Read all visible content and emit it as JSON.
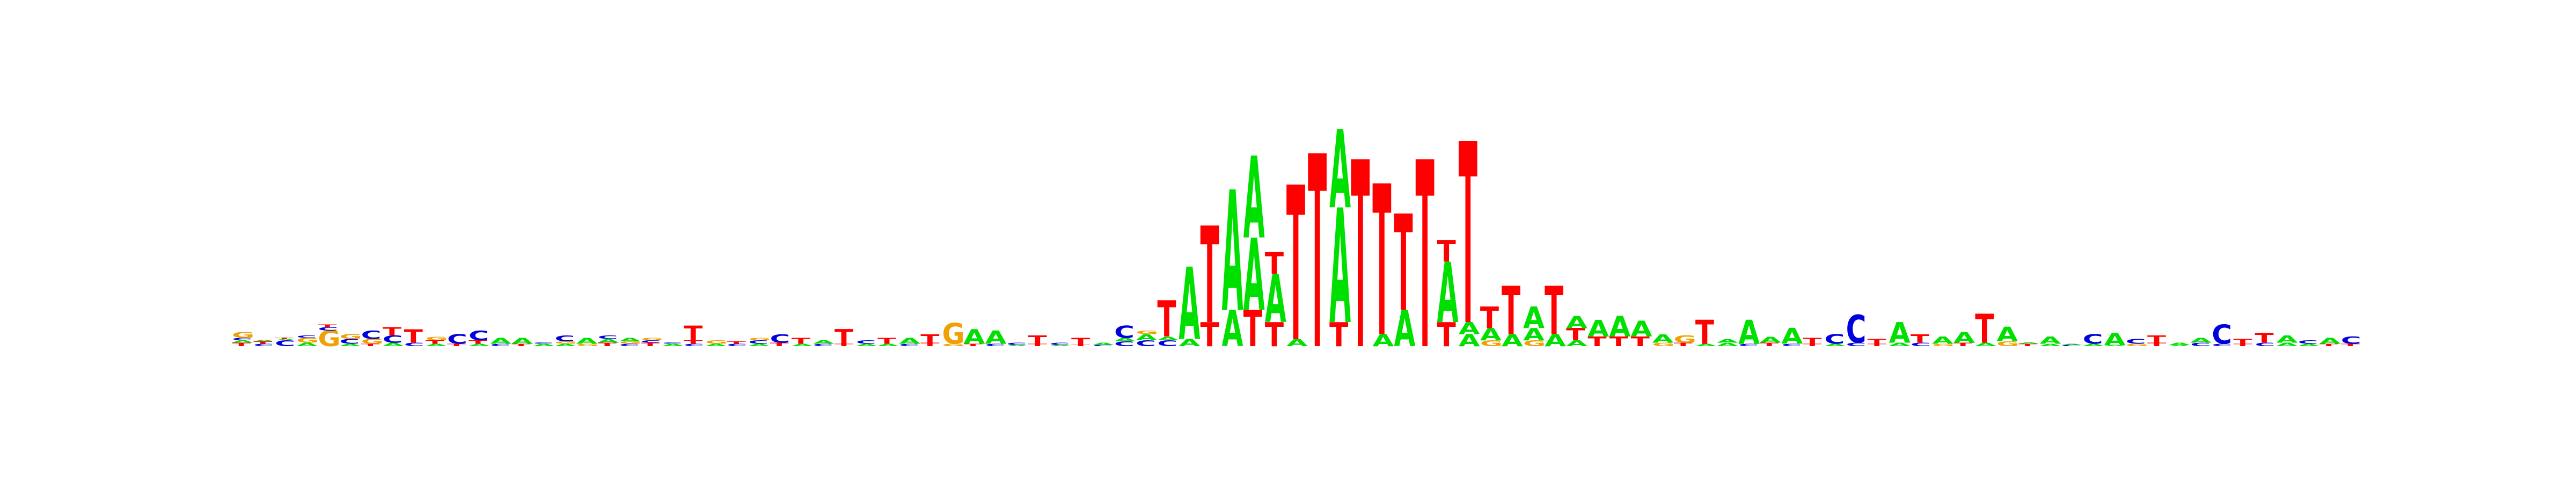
{
  "colors": {
    "A": "#00e000",
    "C": "#0000dd",
    "G": "#f0a000",
    "T": "#ff0000"
  },
  "logo": {
    "type": "sequence-logo",
    "columns": [
      {
        "letters": [
          [
            "T",
            0.03
          ],
          [
            "A",
            0.02
          ],
          [
            "C",
            0.02
          ],
          [
            "G",
            0.05
          ]
        ]
      },
      {
        "letters": [
          [
            "C",
            0.02
          ],
          [
            "T",
            0.02
          ],
          [
            "A",
            0.01
          ]
        ]
      },
      {
        "letters": [
          [
            "C",
            0.05
          ],
          [
            "A",
            0.01
          ],
          [
            "T",
            0.01
          ]
        ]
      },
      {
        "letters": [
          [
            "A",
            0.03
          ],
          [
            "G",
            0.04
          ],
          [
            "C",
            0.02
          ]
        ]
      },
      {
        "letters": [
          [
            "G",
            0.13
          ],
          [
            "C",
            0.03
          ],
          [
            "T",
            0.02
          ]
        ]
      },
      {
        "letters": [
          [
            "A",
            0.02
          ],
          [
            "C",
            0.04
          ],
          [
            "G",
            0.04
          ]
        ]
      },
      {
        "letters": [
          [
            "T",
            0.02
          ],
          [
            "G",
            0.04
          ],
          [
            "C",
            0.07
          ]
        ]
      },
      {
        "letters": [
          [
            "A",
            0.03
          ],
          [
            "C",
            0.06
          ],
          [
            "T",
            0.07
          ]
        ]
      },
      {
        "letters": [
          [
            "C",
            0.03
          ],
          [
            "T",
            0.11
          ]
        ]
      },
      {
        "letters": [
          [
            "A",
            0.02
          ],
          [
            "T",
            0.03
          ],
          [
            "G",
            0.03
          ]
        ]
      },
      {
        "letters": [
          [
            "T",
            0.02
          ],
          [
            "C",
            0.08
          ]
        ]
      },
      {
        "letters": [
          [
            "A",
            0.02
          ],
          [
            "T",
            0.03
          ],
          [
            "C",
            0.08
          ]
        ]
      },
      {
        "letters": [
          [
            "C",
            0.02
          ],
          [
            "A",
            0.05
          ]
        ]
      },
      {
        "letters": [
          [
            "T",
            0.02
          ],
          [
            "A",
            0.05
          ]
        ]
      },
      {
        "letters": [
          [
            "A",
            0.02
          ],
          [
            "C",
            0.01
          ]
        ]
      },
      {
        "letters": [
          [
            "A",
            0.02
          ],
          [
            "G",
            0.02
          ],
          [
            "C",
            0.05
          ]
        ]
      },
      {
        "letters": [
          [
            "G",
            0.02
          ],
          [
            "A",
            0.05
          ]
        ]
      },
      {
        "letters": [
          [
            "T",
            0.03
          ],
          [
            "A",
            0.03
          ],
          [
            "C",
            0.03
          ]
        ]
      },
      {
        "letters": [
          [
            "C",
            0.02
          ],
          [
            "G",
            0.02
          ],
          [
            "A",
            0.03
          ]
        ]
      },
      {
        "letters": [
          [
            "T",
            0.03
          ],
          [
            "C",
            0.02
          ],
          [
            "G",
            0.02
          ]
        ]
      },
      {
        "letters": [
          [
            "A",
            0.02
          ],
          [
            "C",
            0.01
          ]
        ]
      },
      {
        "letters": [
          [
            "C",
            0.02
          ],
          [
            "T",
            0.03
          ],
          [
            "T",
            0.12
          ]
        ]
      },
      {
        "letters": [
          [
            "A",
            0.02
          ],
          [
            "G",
            0.03
          ]
        ]
      },
      {
        "letters": [
          [
            "C",
            0.02
          ],
          [
            "T",
            0.02
          ]
        ]
      },
      {
        "letters": [
          [
            "A",
            0.02
          ],
          [
            "C",
            0.03
          ],
          [
            "G",
            0.02
          ]
        ]
      },
      {
        "letters": [
          [
            "T",
            0.03
          ],
          [
            "C",
            0.07
          ]
        ]
      },
      {
        "letters": [
          [
            "A",
            0.02
          ],
          [
            "T",
            0.05
          ]
        ]
      },
      {
        "letters": [
          [
            "C",
            0.02
          ],
          [
            "A",
            0.03
          ]
        ]
      },
      {
        "letters": [
          [
            "T",
            0.02
          ],
          [
            "T",
            0.12
          ]
        ]
      },
      {
        "letters": [
          [
            "A",
            0.02
          ],
          [
            "C",
            0.03
          ]
        ]
      },
      {
        "letters": [
          [
            "A",
            0.02
          ],
          [
            "T",
            0.05
          ]
        ]
      },
      {
        "letters": [
          [
            "C",
            0.02
          ],
          [
            "A",
            0.05
          ]
        ]
      },
      {
        "letters": [
          [
            "T",
            0.03
          ],
          [
            "T",
            0.07
          ]
        ]
      },
      {
        "letters": [
          [
            "G",
            0.02
          ],
          [
            "G",
            0.17
          ]
        ]
      },
      {
        "letters": [
          [
            "T",
            0.02
          ],
          [
            "A",
            0.12
          ]
        ]
      },
      {
        "letters": [
          [
            "C",
            0.02
          ],
          [
            "A",
            0.11
          ]
        ]
      },
      {
        "letters": [
          [
            "A",
            0.01
          ],
          [
            "C",
            0.02
          ]
        ]
      },
      {
        "letters": [
          [
            "T",
            0.02
          ],
          [
            "T",
            0.07
          ]
        ]
      },
      {
        "letters": [
          [
            "A",
            0.01
          ],
          [
            "C",
            0.02
          ]
        ]
      },
      {
        "letters": [
          [
            "T",
            0.01
          ],
          [
            "T",
            0.06
          ]
        ]
      },
      {
        "letters": [
          [
            "C",
            0.01
          ],
          [
            "A",
            0.02
          ]
        ]
      },
      {
        "letters": [
          [
            "C",
            0.04
          ],
          [
            "A",
            0.03
          ],
          [
            "C",
            0.1
          ]
        ]
      },
      {
        "letters": [
          [
            "C",
            0.05
          ],
          [
            "A",
            0.05
          ],
          [
            "G",
            0.03
          ]
        ]
      },
      {
        "letters": [
          [
            "C",
            0.05
          ],
          [
            "A",
            0.03
          ],
          [
            "T",
            0.3
          ]
        ]
      },
      {
        "letters": [
          [
            "A",
            0.06
          ],
          [
            "A",
            0.6
          ]
        ]
      },
      {
        "letters": [
          [
            "T",
            0.2
          ],
          [
            "T",
            0.8
          ]
        ]
      },
      {
        "letters": [
          [
            "A",
            0.3
          ],
          [
            "A",
            1.0
          ]
        ]
      },
      {
        "letters": [
          [
            "T",
            0.3
          ],
          [
            "A",
            0.6
          ],
          [
            "A",
            0.68
          ]
        ]
      },
      {
        "letters": [
          [
            "T",
            0.2
          ],
          [
            "A",
            0.4
          ],
          [
            "T",
            0.18
          ]
        ]
      },
      {
        "letters": [
          [
            "A",
            0.06
          ],
          [
            "T",
            1.28
          ]
        ]
      },
      {
        "letters": [
          [
            "T",
            1.6
          ]
        ]
      },
      {
        "letters": [
          [
            "T",
            0.2
          ],
          [
            "A",
            0.95
          ],
          [
            "A",
            0.65
          ]
        ]
      },
      {
        "letters": [
          [
            "T",
            1.55
          ]
        ]
      },
      {
        "letters": [
          [
            "A",
            0.1
          ],
          [
            "T",
            1.25
          ]
        ]
      },
      {
        "letters": [
          [
            "A",
            0.3
          ],
          [
            "T",
            0.8
          ]
        ]
      },
      {
        "letters": [
          [
            "T",
            1.55
          ]
        ]
      },
      {
        "letters": [
          [
            "T",
            0.2
          ],
          [
            "A",
            0.5
          ],
          [
            "T",
            0.18
          ]
        ]
      },
      {
        "letters": [
          [
            "A",
            0.1
          ],
          [
            "A",
            0.1
          ],
          [
            "T",
            1.5
          ]
        ]
      },
      {
        "letters": [
          [
            "G",
            0.05
          ],
          [
            "A",
            0.1
          ],
          [
            "T",
            0.18
          ]
        ]
      },
      {
        "letters": [
          [
            "A",
            0.1
          ],
          [
            "T",
            0.4
          ]
        ]
      },
      {
        "letters": [
          [
            "G",
            0.05
          ],
          [
            "A",
            0.1
          ],
          [
            "A",
            0.18
          ]
        ]
      },
      {
        "letters": [
          [
            "A",
            0.1
          ],
          [
            "T",
            0.4
          ]
        ]
      },
      {
        "letters": [
          [
            "A",
            0.05
          ],
          [
            "T",
            0.1
          ],
          [
            "A",
            0.1
          ]
        ]
      },
      {
        "letters": [
          [
            "T",
            0.08
          ],
          [
            "A",
            0.14
          ]
        ]
      },
      {
        "letters": [
          [
            "T",
            0.08
          ],
          [
            "A",
            0.17
          ]
        ]
      },
      {
        "letters": [
          [
            "T",
            0.08
          ],
          [
            "A",
            0.13
          ]
        ]
      },
      {
        "letters": [
          [
            "G",
            0.03
          ],
          [
            "A",
            0.07
          ]
        ]
      },
      {
        "letters": [
          [
            "T",
            0.03
          ],
          [
            "G",
            0.06
          ]
        ]
      },
      {
        "letters": [
          [
            "A",
            0.02
          ],
          [
            "T",
            0.2
          ]
        ]
      },
      {
        "letters": [
          [
            "A",
            0.03
          ],
          [
            "A",
            0.03
          ]
        ]
      },
      {
        "letters": [
          [
            "C",
            0.02
          ],
          [
            "A",
            0.2
          ]
        ]
      },
      {
        "letters": [
          [
            "T",
            0.03
          ],
          [
            "A",
            0.05
          ]
        ]
      },
      {
        "letters": [
          [
            "C",
            0.02
          ],
          [
            "A",
            0.13
          ]
        ]
      },
      {
        "letters": [
          [
            "T",
            0.02
          ],
          [
            "T",
            0.05
          ]
        ]
      },
      {
        "letters": [
          [
            "A",
            0.02
          ],
          [
            "C",
            0.08
          ]
        ]
      },
      {
        "letters": [
          [
            "C",
            0.03
          ],
          [
            "C",
            0.23
          ]
        ]
      },
      {
        "letters": [
          [
            "T",
            0.02
          ],
          [
            "T",
            0.04
          ]
        ]
      },
      {
        "letters": [
          [
            "A",
            0.03
          ],
          [
            "A",
            0.17
          ]
        ]
      },
      {
        "letters": [
          [
            "C",
            0.03
          ],
          [
            "T",
            0.07
          ]
        ]
      },
      {
        "letters": [
          [
            "G",
            0.02
          ],
          [
            "A",
            0.06
          ]
        ]
      },
      {
        "letters": [
          [
            "T",
            0.03
          ],
          [
            "A",
            0.09
          ]
        ]
      },
      {
        "letters": [
          [
            "A",
            0.03
          ],
          [
            "T",
            0.24
          ]
        ]
      },
      {
        "letters": [
          [
            "G",
            0.04
          ],
          [
            "A",
            0.12
          ]
        ]
      },
      {
        "letters": [
          [
            "T",
            0.02
          ],
          [
            "A",
            0.01
          ]
        ]
      },
      {
        "letters": [
          [
            "A",
            0.02
          ],
          [
            "A",
            0.06
          ]
        ]
      },
      {
        "letters": [
          [
            "C",
            0.01
          ],
          [
            "A",
            0.01
          ]
        ]
      },
      {
        "letters": [
          [
            "A",
            0.02
          ],
          [
            "C",
            0.08
          ]
        ]
      },
      {
        "letters": [
          [
            "A",
            0.01
          ],
          [
            "A",
            0.1
          ]
        ]
      },
      {
        "letters": [
          [
            "G",
            0.02
          ],
          [
            "C",
            0.04
          ]
        ]
      },
      {
        "letters": [
          [
            "T",
            0.03
          ],
          [
            "T",
            0.06
          ]
        ]
      },
      {
        "letters": [
          [
            "A",
            0.01
          ],
          [
            "A",
            0.02
          ]
        ]
      },
      {
        "letters": [
          [
            "C",
            0.03
          ],
          [
            "A",
            0.04
          ]
        ]
      },
      {
        "letters": [
          [
            "C",
            0.02
          ],
          [
            "C",
            0.16
          ]
        ]
      },
      {
        "letters": [
          [
            "T",
            0.02
          ],
          [
            "T",
            0.04
          ]
        ]
      },
      {
        "letters": [
          [
            "C",
            0.03
          ],
          [
            "T",
            0.08
          ]
        ]
      },
      {
        "letters": [
          [
            "A",
            0.03
          ],
          [
            "A",
            0.06
          ]
        ]
      },
      {
        "letters": [
          [
            "A",
            0.02
          ],
          [
            "C",
            0.03
          ]
        ]
      },
      {
        "letters": [
          [
            "T",
            0.02
          ],
          [
            "A",
            0.05
          ]
        ]
      },
      {
        "letters": [
          [
            "T",
            0.02
          ],
          [
            "C",
            0.06
          ]
        ]
      }
    ]
  }
}
